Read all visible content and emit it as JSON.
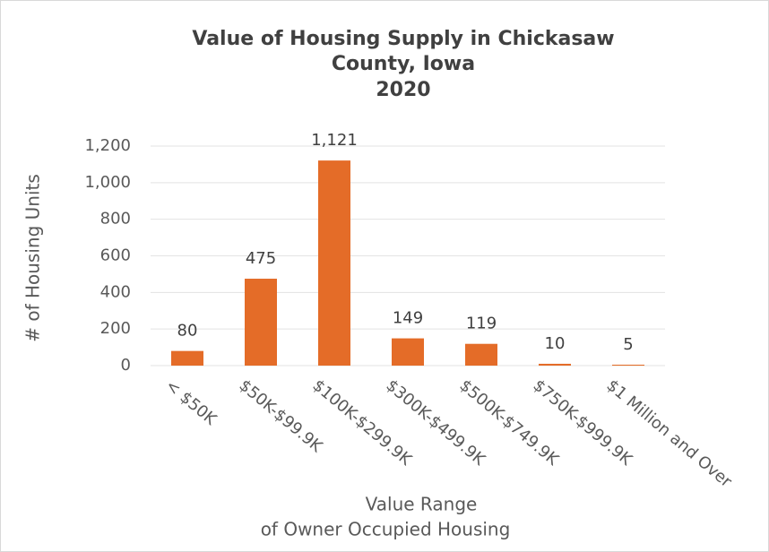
{
  "chart_data": {
    "type": "bar",
    "title": [
      "Value of Housing Supply in Chickasaw",
      "County, Iowa",
      "2020"
    ],
    "x_label": [
      "Value Range",
      "of Owner Occupied Housing"
    ],
    "y_label": "# of Housing Units",
    "categories": [
      "< $50K",
      "$50K-$99.9K",
      "$100K-$299.9K",
      "$300K-$499.9K",
      "$500K-$749.9K",
      "$750K-$999.9K",
      "$1 Million and Over"
    ],
    "values": [
      80,
      475,
      1121,
      149,
      119,
      10,
      5
    ],
    "value_labels": [
      "80",
      "475",
      "1,121",
      "149",
      "119",
      "10",
      "5"
    ],
    "color": "#e46c28",
    "ylim": [
      0,
      1200
    ],
    "yticks": [
      0,
      200,
      400,
      600,
      800,
      {
        "value": 1000,
        "label": "1,000"
      },
      {
        "value": 1200,
        "label": "1,200"
      }
    ],
    "grid": true
  }
}
